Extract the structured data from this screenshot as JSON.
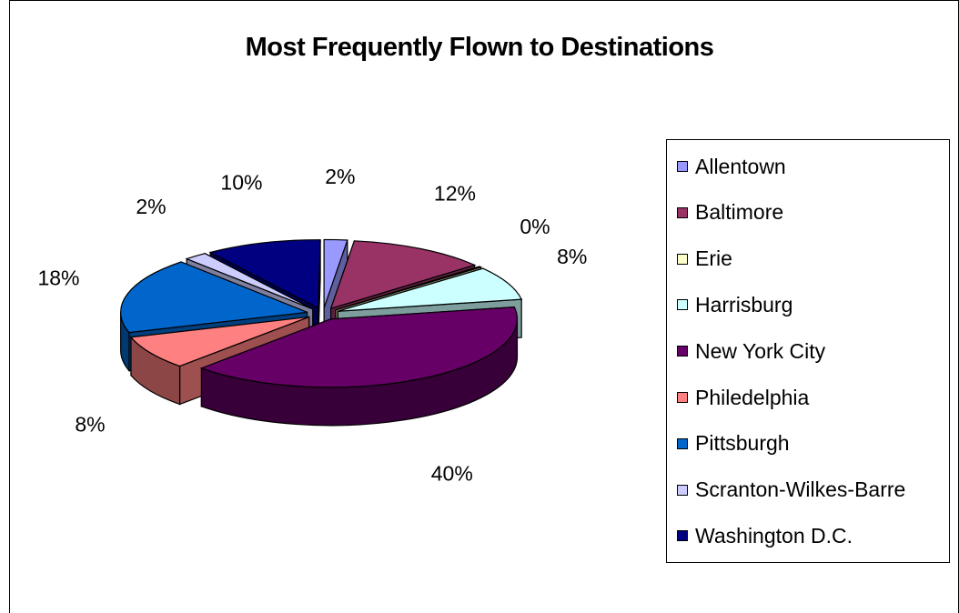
{
  "chart_data": {
    "type": "pie",
    "title": "Most Frequently Flown to Destinations",
    "legend_position": "right",
    "slices": [
      {
        "name": "Allentown",
        "value": 2,
        "label": "2%",
        "color": "#9999ff"
      },
      {
        "name": "Baltimore",
        "value": 12,
        "label": "12%",
        "color": "#993366"
      },
      {
        "name": "Erie",
        "value": 0,
        "label": "0%",
        "color": "#ffffcc"
      },
      {
        "name": "Harrisburg",
        "value": 8,
        "label": "8%",
        "color": "#ccffff"
      },
      {
        "name": "New York City",
        "value": 40,
        "label": "40%",
        "color": "#660066"
      },
      {
        "name": "Philedelphia",
        "value": 8,
        "label": "8%",
        "color": "#ff8080"
      },
      {
        "name": "Pittsburgh",
        "value": 18,
        "label": "18%",
        "color": "#0066cc"
      },
      {
        "name": "Scranton-Wilkes-Barre",
        "value": 2,
        "label": "2%",
        "color": "#ccccff"
      },
      {
        "name": "Washington D.C.",
        "value": 10,
        "label": "10%",
        "color": "#000080"
      }
    ]
  }
}
